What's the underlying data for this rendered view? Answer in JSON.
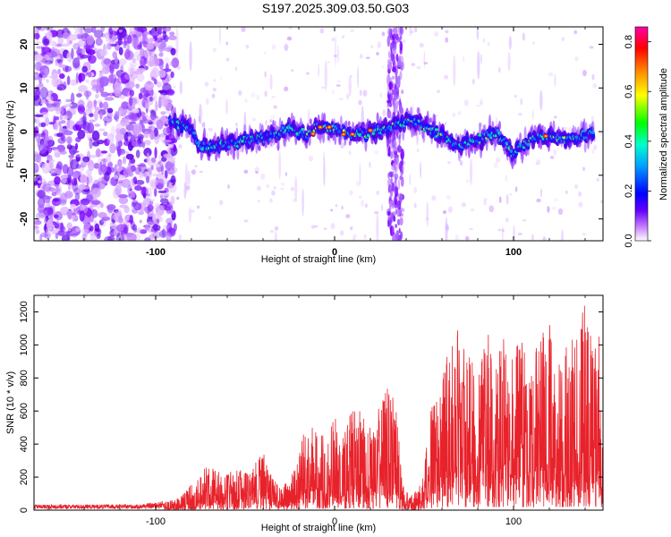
{
  "title": "S197.2025.309.03.50.G03",
  "chart_data": [
    {
      "type": "heatmap",
      "xlabel": "Height of straight line (km)",
      "ylabel": "Frequency (Hz)",
      "xlim": [
        -168,
        150
      ],
      "ylim": [
        -25,
        24
      ],
      "xticks": [
        -100,
        0,
        100
      ],
      "yticks": [
        20,
        10,
        0,
        -10,
        -20
      ],
      "colorbar": {
        "label": "Normalized spectral amplitude",
        "range": [
          0,
          0.86
        ],
        "ticks": [
          0.0,
          0.2,
          0.4,
          0.6,
          0.8
        ],
        "colormap": "rainbow",
        "colors": [
          "#ffffff",
          "#6600ff",
          "#0000ff",
          "#00e5ff",
          "#00ff00",
          "#ffff00",
          "#ff8000",
          "#ff0000",
          "#ff00aa"
        ]
      },
      "ridge": [
        [
          -92,
          2.5
        ],
        [
          -80,
          0.5
        ],
        [
          -75,
          -3.5
        ],
        [
          -65,
          -3
        ],
        [
          -55,
          -2.5
        ],
        [
          -45,
          -2
        ],
        [
          -35,
          -1
        ],
        [
          -25,
          0.5
        ],
        [
          -15,
          -0.5
        ],
        [
          -10,
          0.8
        ],
        [
          -5,
          1
        ],
        [
          0,
          0.5
        ],
        [
          10,
          -0.5
        ],
        [
          20,
          -0.5
        ],
        [
          25,
          0.5
        ],
        [
          30,
          1
        ],
        [
          45,
          2.5
        ],
        [
          50,
          1
        ],
        [
          60,
          -1
        ],
        [
          70,
          -3
        ],
        [
          80,
          -2
        ],
        [
          90,
          0
        ],
        [
          100,
          -5
        ],
        [
          110,
          -2
        ],
        [
          120,
          -1
        ],
        [
          130,
          -2
        ],
        [
          145,
          0
        ]
      ],
      "noise_region_x": [
        -168,
        -92
      ],
      "vertical_streak_x": [
        30,
        38
      ]
    },
    {
      "type": "line",
      "xlabel": "Height of straight line (km)",
      "ylabel": "SNR (10 * v/v)",
      "xlim": [
        -168,
        150
      ],
      "ylim": [
        0,
        1300
      ],
      "xticks": [
        -100,
        0,
        100
      ],
      "yticks": [
        0,
        200,
        400,
        600,
        800,
        1000,
        1200
      ],
      "color": "#e8222b",
      "envelope": [
        [
          -168,
          30
        ],
        [
          -110,
          30
        ],
        [
          -100,
          40
        ],
        [
          -90,
          60
        ],
        [
          -85,
          90
        ],
        [
          -80,
          150
        ],
        [
          -72,
          250
        ],
        [
          -65,
          230
        ],
        [
          -60,
          240
        ],
        [
          -55,
          230
        ],
        [
          -48,
          260
        ],
        [
          -40,
          340
        ],
        [
          -35,
          200
        ],
        [
          -30,
          120
        ],
        [
          -25,
          190
        ],
        [
          -20,
          300
        ],
        [
          -18,
          450
        ],
        [
          -12,
          520
        ],
        [
          -8,
          480
        ],
        [
          -5,
          390
        ],
        [
          0,
          560
        ],
        [
          3,
          360
        ],
        [
          8,
          540
        ],
        [
          12,
          600
        ],
        [
          18,
          520
        ],
        [
          22,
          500
        ],
        [
          28,
          720
        ],
        [
          32,
          700
        ],
        [
          35,
          560
        ],
        [
          38,
          150
        ],
        [
          42,
          80
        ],
        [
          48,
          150
        ],
        [
          50,
          250
        ],
        [
          54,
          600
        ],
        [
          58,
          640
        ],
        [
          62,
          880
        ],
        [
          66,
          990
        ],
        [
          70,
          1060
        ],
        [
          75,
          890
        ],
        [
          80,
          800
        ],
        [
          85,
          1100
        ],
        [
          90,
          900
        ],
        [
          95,
          1030
        ],
        [
          100,
          890
        ],
        [
          105,
          1070
        ],
        [
          110,
          800
        ],
        [
          115,
          1050
        ],
        [
          120,
          1100
        ],
        [
          125,
          900
        ],
        [
          130,
          1000
        ],
        [
          135,
          1000
        ],
        [
          138,
          1250
        ],
        [
          142,
          1100
        ],
        [
          145,
          900
        ],
        [
          148,
          1100
        ],
        [
          150,
          200
        ]
      ]
    }
  ]
}
